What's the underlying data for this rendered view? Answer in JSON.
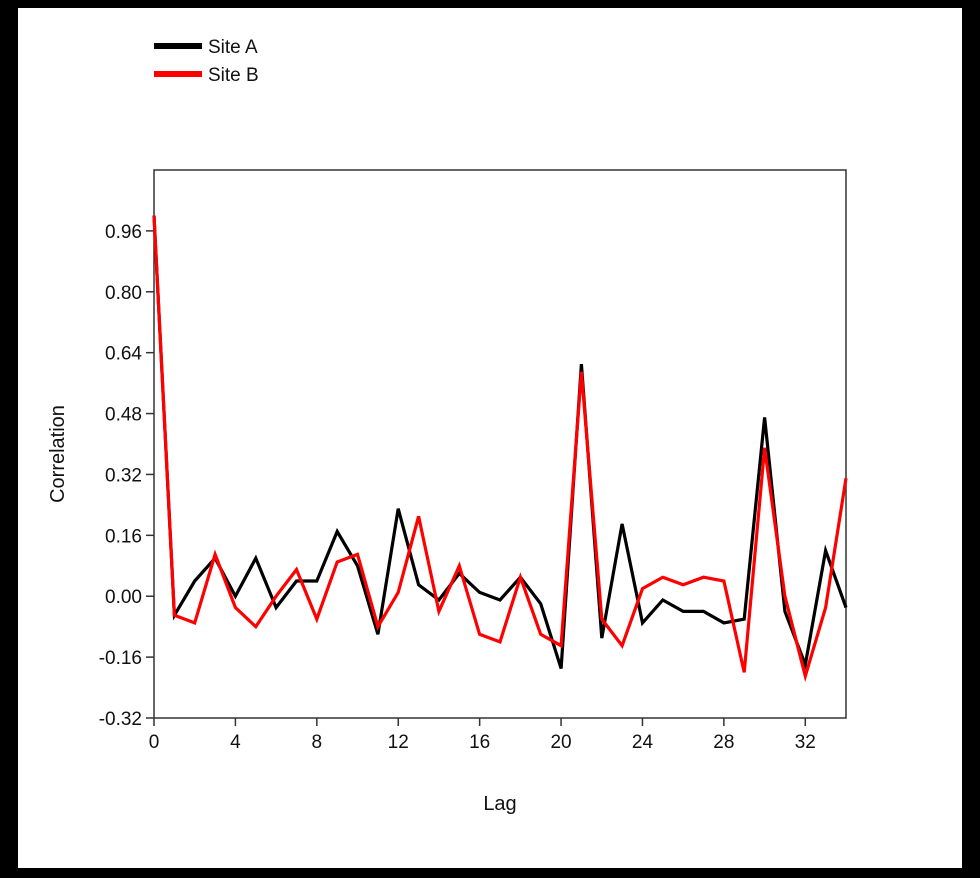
{
  "chart_data": {
    "type": "line",
    "title": "",
    "xlabel": "Lag",
    "ylabel": "Correlation",
    "xlim": [
      0,
      34
    ],
    "ylim": [
      -0.32,
      1.12
    ],
    "xticks": [
      0,
      4,
      8,
      12,
      16,
      20,
      24,
      28,
      32
    ],
    "yticks": [
      -0.32,
      -0.16,
      0.0,
      0.16,
      0.32,
      0.48,
      0.64,
      0.8,
      0.96
    ],
    "ytick_labels": [
      "-0.32",
      "-0.16",
      "0.00",
      "0.16",
      "0.32",
      "0.48",
      "0.64",
      "0.80",
      "0.96"
    ],
    "grid": false,
    "legend_position": "top-left",
    "x": [
      0,
      1,
      2,
      3,
      4,
      5,
      6,
      7,
      8,
      9,
      10,
      11,
      12,
      13,
      14,
      15,
      16,
      17,
      18,
      19,
      20,
      21,
      22,
      23,
      24,
      25,
      26,
      27,
      28,
      29,
      30,
      31,
      32,
      33,
      34
    ],
    "series": [
      {
        "name": "Site A",
        "color": "#000000",
        "values": [
          1.0,
          -0.05,
          0.04,
          0.1,
          0.0,
          0.1,
          -0.03,
          0.04,
          0.04,
          0.17,
          0.08,
          -0.1,
          0.23,
          0.03,
          -0.01,
          0.06,
          0.01,
          -0.01,
          0.05,
          -0.02,
          -0.19,
          0.61,
          -0.11,
          0.19,
          -0.07,
          -0.01,
          -0.04,
          -0.04,
          -0.07,
          -0.06,
          0.47,
          -0.04,
          -0.18,
          0.12,
          -0.03
        ]
      },
      {
        "name": "Site B",
        "color": "#ff0000",
        "values": [
          1.0,
          -0.05,
          -0.07,
          0.11,
          -0.03,
          -0.08,
          0.0,
          0.07,
          -0.06,
          0.09,
          0.11,
          -0.08,
          0.01,
          0.21,
          -0.04,
          0.08,
          -0.1,
          -0.12,
          0.05,
          -0.1,
          -0.13,
          0.59,
          -0.06,
          -0.13,
          0.02,
          0.05,
          0.03,
          0.05,
          0.04,
          -0.2,
          0.39,
          0.0,
          -0.21,
          -0.03,
          0.31
        ]
      }
    ]
  }
}
